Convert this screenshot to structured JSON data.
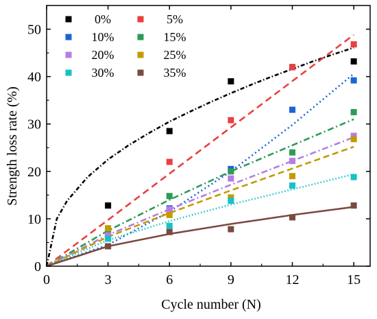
{
  "chart_data": {
    "type": "scatter",
    "xlabel": "Cycle number (N)",
    "ylabel": "Strength loss rate (%)",
    "xlim": [
      0,
      15.8
    ],
    "ylim": [
      0,
      55
    ],
    "x_ticks": [
      "0",
      "3",
      "6",
      "9",
      "12",
      "15"
    ],
    "y_ticks": [
      "0",
      "10",
      "20",
      "30",
      "40",
      "50"
    ],
    "legend_position": "top-left",
    "x": [
      3,
      6,
      9,
      12,
      15
    ],
    "series": [
      {
        "name": "0%",
        "color": "#000000",
        "dash": "6,3,1.5,3",
        "values": [
          12.8,
          28.5,
          39.0,
          42.0,
          43.2
        ],
        "fit": [
          [
            0,
            0
          ],
          [
            0.5,
            10
          ],
          [
            1,
            13.8
          ],
          [
            2,
            18.8
          ],
          [
            3,
            22.5
          ],
          [
            4,
            25.5
          ],
          [
            5,
            28.1
          ],
          [
            6,
            30.5
          ],
          [
            7,
            32.6
          ],
          [
            8,
            34.6
          ],
          [
            9,
            36.5
          ],
          [
            10,
            38.3
          ],
          [
            11,
            40.0
          ],
          [
            12,
            41.6
          ],
          [
            13,
            43.2
          ],
          [
            14,
            44.7
          ],
          [
            15,
            46.1
          ]
        ]
      },
      {
        "name": "5%",
        "color": "#e8403f",
        "dash": "10,6",
        "values": [
          null,
          22.0,
          30.8,
          42.0,
          46.8
        ],
        "fit": [
          [
            0,
            0
          ],
          [
            15,
            48.8
          ]
        ]
      },
      {
        "name": "10%",
        "color": "#1a64d8",
        "dash": "2,4",
        "values": [
          7.0,
          12.2,
          20.5,
          33.0,
          39.2
        ],
        "fit": [
          [
            0,
            0
          ],
          [
            3,
            4.5
          ],
          [
            6,
            11.5
          ],
          [
            9,
            20.0
          ],
          [
            12,
            29.8
          ],
          [
            15,
            40.6
          ]
        ]
      },
      {
        "name": "15%",
        "color": "#2e9b55",
        "dash": "9,4,2,4",
        "values": [
          7.5,
          14.8,
          20.0,
          24.0,
          32.5
        ],
        "fit": [
          [
            0,
            0
          ],
          [
            3,
            7.5
          ],
          [
            6,
            14.0
          ],
          [
            9,
            20.0
          ],
          [
            12,
            25.5
          ],
          [
            15,
            31.0
          ]
        ]
      },
      {
        "name": "20%",
        "color": "#b57ee2",
        "dash": "9,4,2,4",
        "values": [
          6.5,
          12.0,
          18.5,
          22.2,
          27.5
        ],
        "fit": [
          [
            0,
            0
          ],
          [
            3,
            6.6
          ],
          [
            6,
            12.0
          ],
          [
            9,
            17.2
          ],
          [
            12,
            22.2
          ],
          [
            15,
            27.2
          ]
        ]
      },
      {
        "name": "25%",
        "color": "#c49a00",
        "dash": "9,5",
        "values": [
          8.0,
          10.8,
          14.5,
          19.0,
          26.8
        ],
        "fit": [
          [
            0,
            0
          ],
          [
            3,
            6.2
          ],
          [
            6,
            11.2
          ],
          [
            9,
            16.0
          ],
          [
            12,
            20.6
          ],
          [
            15,
            25.2
          ]
        ]
      },
      {
        "name": "30%",
        "color": "#16c2c8",
        "dash": "1.5,3",
        "values": [
          5.8,
          8.5,
          13.8,
          17.0,
          18.8
        ],
        "fit": [
          [
            0,
            0
          ],
          [
            3,
            5.5
          ],
          [
            6,
            9.5
          ],
          [
            9,
            13.0
          ],
          [
            12,
            16.2
          ],
          [
            15,
            19.4
          ]
        ]
      },
      {
        "name": "35%",
        "color": "#7b4a41",
        "dash": "",
        "values": [
          4.2,
          7.2,
          7.8,
          10.3,
          12.8
        ],
        "fit": [
          [
            0,
            0
          ],
          [
            3,
            4.2
          ],
          [
            6,
            6.8
          ],
          [
            9,
            8.9
          ],
          [
            12,
            10.8
          ],
          [
            15,
            12.5
          ]
        ]
      }
    ]
  }
}
